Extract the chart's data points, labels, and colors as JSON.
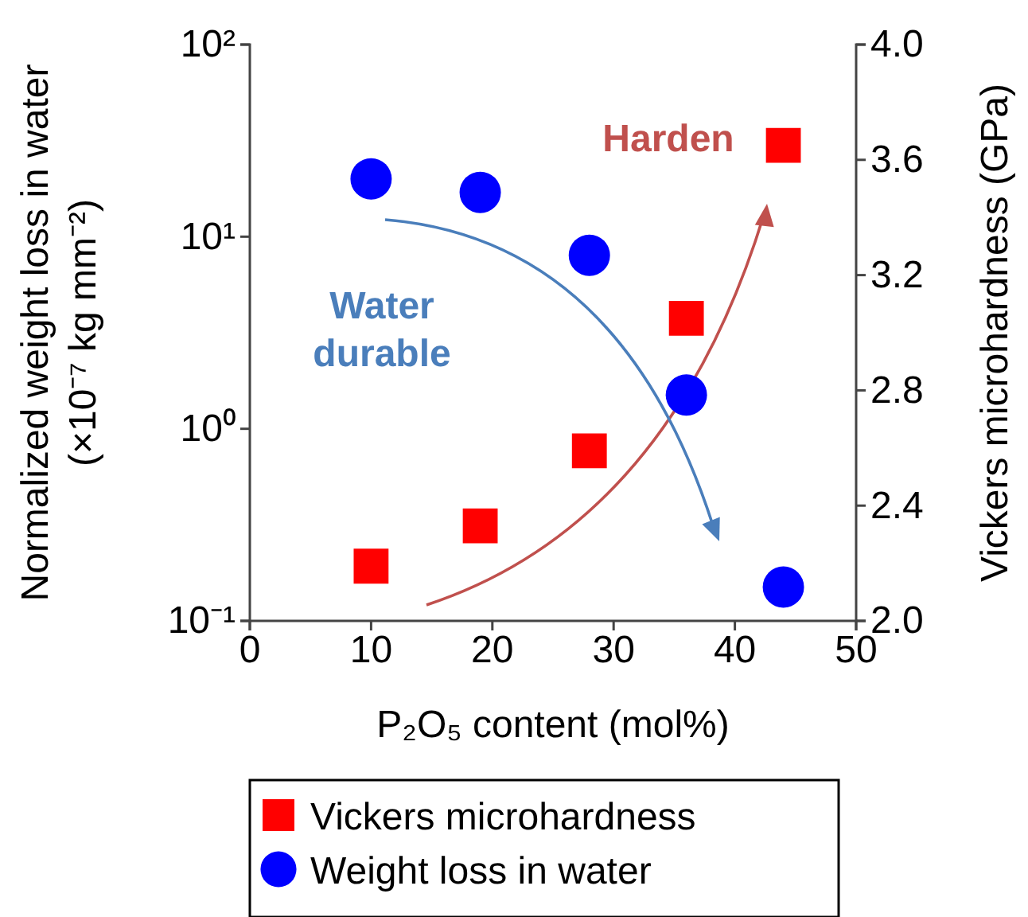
{
  "chart_data": {
    "type": "scatter",
    "xlabel": "P₂O₅ content (mol%)",
    "ylabel": "Normalized weight loss in water\n(×10⁻⁷ kg mm⁻²)",
    "y2label": "Vickers microhardness  (GPa)",
    "x": [
      10,
      19,
      28,
      36,
      44
    ],
    "xlim": [
      0,
      50
    ],
    "xticks": [
      0,
      10,
      20,
      30,
      40,
      50
    ],
    "ylim": [
      0.1,
      100
    ],
    "yticks": [
      {
        "value": 0.1,
        "label": "10⁻¹"
      },
      {
        "value": 1,
        "label": "10⁰"
      },
      {
        "value": 10,
        "label": "10¹"
      },
      {
        "value": 100,
        "label": "10²"
      }
    ],
    "log": "y",
    "y2lim": [
      2.0,
      4.0
    ],
    "y2ticks": [
      {
        "value": 2.0,
        "label": "2.0"
      },
      {
        "value": 2.4,
        "label": "2.4"
      },
      {
        "value": 2.8,
        "label": "2.8"
      },
      {
        "value": 3.2,
        "label": "3.2"
      },
      {
        "value": 3.6,
        "label": "3.6"
      },
      {
        "value": 4.0,
        "label": "4.0"
      }
    ],
    "series": [
      {
        "name": "Vickers microhardness",
        "color": "#ff0000",
        "marker": "square",
        "axis": "y2",
        "values": [
          2.19,
          2.33,
          2.59,
          3.05,
          3.65
        ]
      },
      {
        "name": "Weight loss in water",
        "color": "#0000ff",
        "marker": "circle",
        "values": [
          20,
          17,
          8,
          1.5,
          0.15
        ]
      }
    ],
    "legend": "bottom",
    "grid": false,
    "annotations": [
      "Harden",
      "Water\ndurable"
    ]
  }
}
